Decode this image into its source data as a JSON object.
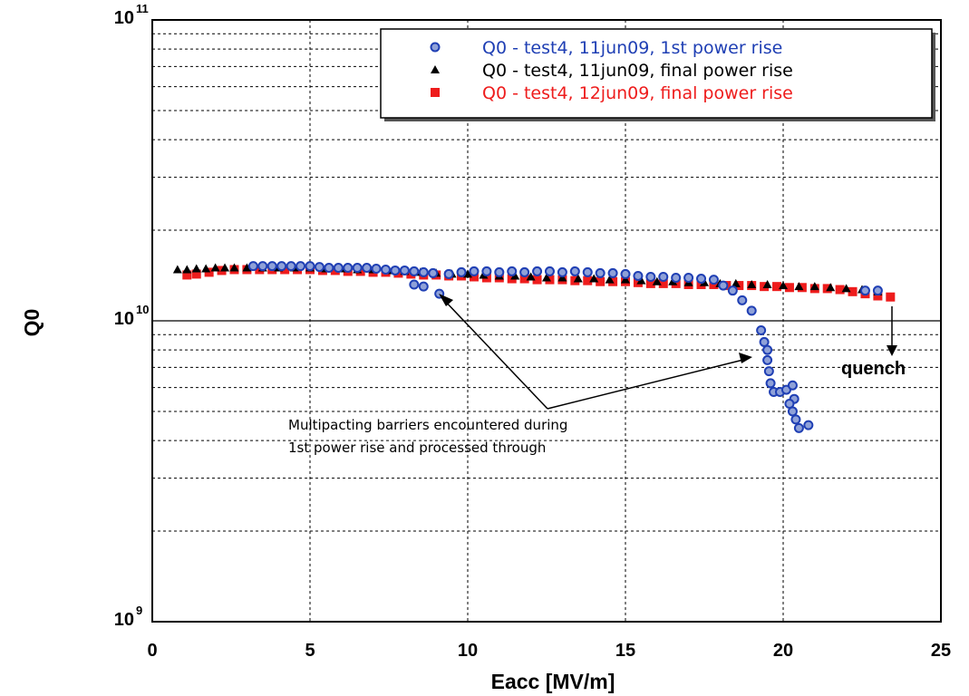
{
  "chart_data": {
    "type": "scatter",
    "title": "",
    "xlabel": "Eacc [MV/m]",
    "ylabel": "Q0",
    "xlim": [
      0,
      25
    ],
    "ylim": [
      1000000000.0,
      100000000000.0
    ],
    "y_scale": "log",
    "grid": true,
    "legend_position": "top-right",
    "x_ticks": [
      "0",
      "5",
      "10",
      "15",
      "20",
      "25"
    ],
    "y_ticks": [
      {
        "base": "10",
        "exp": "9",
        "value": 1000000000.0
      },
      {
        "base": "10",
        "exp": "10",
        "value": 10000000000.0
      },
      {
        "base": "10",
        "exp": "11",
        "value": 100000000000.0
      }
    ],
    "series": [
      {
        "name": "Q0 - test4, 11jun09, 1st power rise",
        "color": "#1f3fb4",
        "marker": "circle",
        "points": [
          [
            3.2,
            15200000000.0
          ],
          [
            3.5,
            15200000000.0
          ],
          [
            3.8,
            15200000000.0
          ],
          [
            4.1,
            15200000000.0
          ],
          [
            4.4,
            15200000000.0
          ],
          [
            4.7,
            15200000000.0
          ],
          [
            5.0,
            15200000000.0
          ],
          [
            5.3,
            15100000000.0
          ],
          [
            5.6,
            15000000000.0
          ],
          [
            5.9,
            15000000000.0
          ],
          [
            6.2,
            15000000000.0
          ],
          [
            6.5,
            15000000000.0
          ],
          [
            6.8,
            15000000000.0
          ],
          [
            7.1,
            14900000000.0
          ],
          [
            7.4,
            14800000000.0
          ],
          [
            7.7,
            14700000000.0
          ],
          [
            8.0,
            14700000000.0
          ],
          [
            8.3,
            14600000000.0
          ],
          [
            8.6,
            14500000000.0
          ],
          [
            8.9,
            14400000000.0
          ],
          [
            8.3,
            13200000000.0
          ],
          [
            8.6,
            13000000000.0
          ],
          [
            9.1,
            12300000000.0
          ],
          [
            9.4,
            14300000000.0
          ],
          [
            9.8,
            14500000000.0
          ],
          [
            10.2,
            14600000000.0
          ],
          [
            10.6,
            14600000000.0
          ],
          [
            11.0,
            14500000000.0
          ],
          [
            11.4,
            14600000000.0
          ],
          [
            11.8,
            14500000000.0
          ],
          [
            12.2,
            14600000000.0
          ],
          [
            12.6,
            14600000000.0
          ],
          [
            13.0,
            14500000000.0
          ],
          [
            13.4,
            14600000000.0
          ],
          [
            13.8,
            14500000000.0
          ],
          [
            14.2,
            14400000000.0
          ],
          [
            14.6,
            14400000000.0
          ],
          [
            15.0,
            14300000000.0
          ],
          [
            15.4,
            14100000000.0
          ],
          [
            15.8,
            14000000000.0
          ],
          [
            16.2,
            14000000000.0
          ],
          [
            16.6,
            13900000000.0
          ],
          [
            17.0,
            13900000000.0
          ],
          [
            17.4,
            13800000000.0
          ],
          [
            17.8,
            13700000000.0
          ],
          [
            18.1,
            13100000000.0
          ],
          [
            18.4,
            12600000000.0
          ],
          [
            18.7,
            11700000000.0
          ],
          [
            19.0,
            10800000000.0
          ],
          [
            19.3,
            9300000000.0
          ],
          [
            19.4,
            8500000000.0
          ],
          [
            19.5,
            8000000000.0
          ],
          [
            19.5,
            7400000000.0
          ],
          [
            19.55,
            6800000000.0
          ],
          [
            19.6,
            6200000000.0
          ],
          [
            19.7,
            5800000000.0
          ],
          [
            19.9,
            5800000000.0
          ],
          [
            20.1,
            5900000000.0
          ],
          [
            20.3,
            6100000000.0
          ],
          [
            20.35,
            5500000000.0
          ],
          [
            20.2,
            5300000000.0
          ],
          [
            20.3,
            5000000000.0
          ],
          [
            20.4,
            4700000000.0
          ],
          [
            20.5,
            4400000000.0
          ],
          [
            20.8,
            4500000000.0
          ],
          [
            22.6,
            12600000000.0
          ],
          [
            23.0,
            12600000000.0
          ]
        ]
      },
      {
        "name": "Q0 - test4, 11jun09, final power rise",
        "color": "#000000",
        "marker": "triangle",
        "points": [
          [
            0.8,
            14800000000.0
          ],
          [
            1.1,
            14800000000.0
          ],
          [
            1.4,
            14900000000.0
          ],
          [
            1.7,
            14900000000.0
          ],
          [
            2.0,
            15000000000.0
          ],
          [
            2.3,
            15000000000.0
          ],
          [
            2.6,
            15000000000.0
          ],
          [
            3.0,
            15000000000.0
          ],
          [
            3.5,
            15000000000.0
          ],
          [
            4.0,
            15000000000.0
          ],
          [
            4.5,
            15000000000.0
          ],
          [
            5.0,
            15000000000.0
          ],
          [
            5.5,
            14900000000.0
          ],
          [
            6.0,
            14900000000.0
          ],
          [
            6.5,
            14800000000.0
          ],
          [
            7.0,
            14800000000.0
          ],
          [
            7.5,
            14700000000.0
          ],
          [
            8.0,
            14600000000.0
          ],
          [
            8.5,
            14500000000.0
          ],
          [
            9.0,
            14400000000.0
          ],
          [
            9.5,
            14300000000.0
          ],
          [
            10.0,
            14300000000.0
          ],
          [
            10.5,
            14200000000.0
          ],
          [
            11.0,
            14100000000.0
          ],
          [
            11.5,
            14100000000.0
          ],
          [
            12.0,
            14000000000.0
          ],
          [
            12.5,
            13900000000.0
          ],
          [
            13.0,
            13900000000.0
          ],
          [
            13.5,
            13800000000.0
          ],
          [
            14.0,
            13800000000.0
          ],
          [
            14.5,
            13700000000.0
          ],
          [
            15.0,
            13700000000.0
          ],
          [
            15.5,
            13600000000.0
          ],
          [
            16.0,
            13500000000.0
          ],
          [
            16.5,
            13500000000.0
          ],
          [
            17.0,
            13400000000.0
          ],
          [
            17.5,
            13400000000.0
          ],
          [
            18.0,
            13300000000.0
          ],
          [
            18.5,
            13300000000.0
          ],
          [
            19.0,
            13200000000.0
          ],
          [
            19.5,
            13200000000.0
          ],
          [
            20.0,
            13100000000.0
          ],
          [
            20.5,
            13000000000.0
          ],
          [
            21.0,
            13000000000.0
          ],
          [
            21.5,
            12900000000.0
          ],
          [
            22.0,
            12800000000.0
          ],
          [
            22.5,
            12700000000.0
          ],
          [
            23.0,
            12500000000.0
          ]
        ]
      },
      {
        "name": "Q0 - test4, 12jun09, final power rise",
        "color": "#ee1c1c",
        "marker": "square",
        "points": [
          [
            1.1,
            14200000000.0
          ],
          [
            1.4,
            14300000000.0
          ],
          [
            1.8,
            14500000000.0
          ],
          [
            2.2,
            14700000000.0
          ],
          [
            2.6,
            14800000000.0
          ],
          [
            3.0,
            14800000000.0
          ],
          [
            3.4,
            14800000000.0
          ],
          [
            3.8,
            14800000000.0
          ],
          [
            4.2,
            14800000000.0
          ],
          [
            4.6,
            14800000000.0
          ],
          [
            5.0,
            14800000000.0
          ],
          [
            5.4,
            14700000000.0
          ],
          [
            5.8,
            14700000000.0
          ],
          [
            6.2,
            14600000000.0
          ],
          [
            6.6,
            14600000000.0
          ],
          [
            7.0,
            14500000000.0
          ],
          [
            7.4,
            14500000000.0
          ],
          [
            7.8,
            14400000000.0
          ],
          [
            8.2,
            14300000000.0
          ],
          [
            8.6,
            14200000000.0
          ],
          [
            9.0,
            14200000000.0
          ],
          [
            9.4,
            14100000000.0
          ],
          [
            9.8,
            14100000000.0
          ],
          [
            10.2,
            14000000000.0
          ],
          [
            10.6,
            13900000000.0
          ],
          [
            11.0,
            13900000000.0
          ],
          [
            11.4,
            13800000000.0
          ],
          [
            11.8,
            13800000000.0
          ],
          [
            12.2,
            13700000000.0
          ],
          [
            12.6,
            13700000000.0
          ],
          [
            13.0,
            13700000000.0
          ],
          [
            13.4,
            13600000000.0
          ],
          [
            13.8,
            13600000000.0
          ],
          [
            14.2,
            13500000000.0
          ],
          [
            14.6,
            13500000000.0
          ],
          [
            15.0,
            13500000000.0
          ],
          [
            15.4,
            13400000000.0
          ],
          [
            15.8,
            13300000000.0
          ],
          [
            16.2,
            13300000000.0
          ],
          [
            16.6,
            13300000000.0
          ],
          [
            17.0,
            13200000000.0
          ],
          [
            17.4,
            13200000000.0
          ],
          [
            17.8,
            13200000000.0
          ],
          [
            18.2,
            13100000000.0
          ],
          [
            18.6,
            13100000000.0
          ],
          [
            19.0,
            13100000000.0
          ],
          [
            19.4,
            13000000000.0
          ],
          [
            19.8,
            13000000000.0
          ],
          [
            20.2,
            12900000000.0
          ],
          [
            20.6,
            12900000000.0
          ],
          [
            21.0,
            12800000000.0
          ],
          [
            21.4,
            12800000000.0
          ],
          [
            21.8,
            12700000000.0
          ],
          [
            22.2,
            12500000000.0
          ],
          [
            22.6,
            12300000000.0
          ],
          [
            23.0,
            12100000000.0
          ],
          [
            23.4,
            12000000000.0
          ]
        ]
      }
    ],
    "annotations": {
      "multipacting_line1": "Multipacting barriers encountered during",
      "multipacting_line2": "1st power rise and processed through",
      "quench": "quench"
    }
  }
}
